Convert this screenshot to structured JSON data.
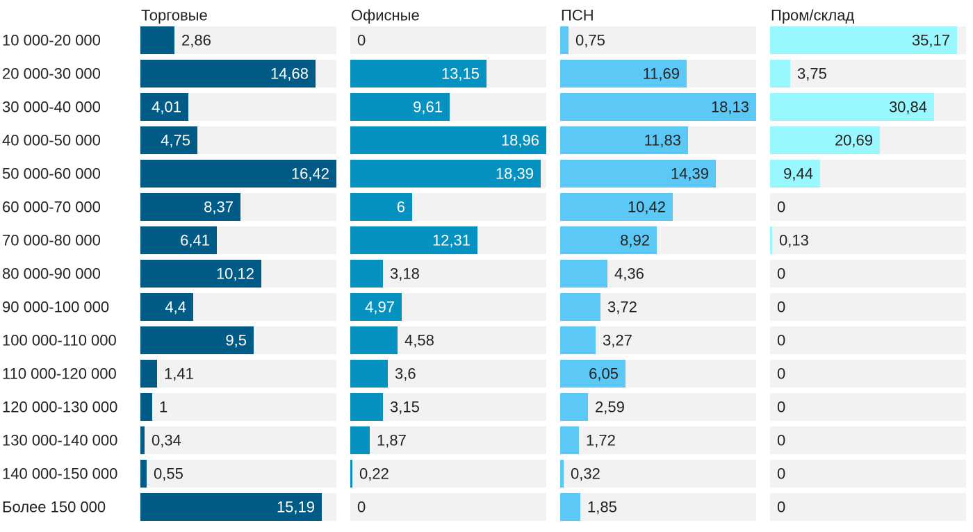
{
  "chart_data": {
    "type": "bar",
    "orientation": "horizontal",
    "layout": "small-multiples",
    "grid": false,
    "legend": "none",
    "categories": [
      "10 000-20 000",
      "20 000-30 000",
      "30 000-40 000",
      "40 000-50 000",
      "50 000-60 000",
      "60 000-70 000",
      "70 000-80 000",
      "80 000-90 000",
      "90 000-100 000",
      "100 000-110 000",
      "110 000-120 000",
      "120 000-130 000",
      "130 000-140 000",
      "140 000-150 000",
      "Более 150 000"
    ],
    "track_color": "#f2f2f2",
    "series": [
      {
        "name": "Торговые",
        "color": "#005b86",
        "xlim": [
          0,
          16.42
        ],
        "values": [
          2.86,
          14.68,
          4.01,
          4.75,
          16.42,
          8.37,
          6.41,
          10.12,
          4.4,
          9.5,
          1.41,
          1,
          0.34,
          0.55,
          15.19
        ],
        "labels": [
          "2,86",
          "14,68",
          "4,01",
          "4,75",
          "16,42",
          "8,37",
          "6,41",
          "10,12",
          "4,4",
          "9,5",
          "1,41",
          "1",
          "0,34",
          "0,55",
          "15,19"
        ]
      },
      {
        "name": "Офисные",
        "color": "#0592c1",
        "xlim": [
          0,
          18.96
        ],
        "values": [
          0,
          13.15,
          9.61,
          18.96,
          18.39,
          6,
          12.31,
          3.18,
          4.97,
          4.58,
          3.6,
          3.15,
          1.87,
          0.22,
          0
        ],
        "labels": [
          "0",
          "13,15",
          "9,61",
          "18,96",
          "18,39",
          "6",
          "12,31",
          "3,18",
          "4,97",
          "4,58",
          "3,6",
          "3,15",
          "1,87",
          "0,22",
          "0"
        ]
      },
      {
        "name": "ПСН",
        "color": "#5cc8f5",
        "xlim": [
          0,
          18.13
        ],
        "values": [
          0.75,
          11.69,
          18.13,
          11.83,
          14.39,
          10.42,
          8.92,
          4.36,
          3.72,
          3.27,
          6.05,
          2.59,
          1.72,
          0.32,
          1.85
        ],
        "labels": [
          "0,75",
          "11,69",
          "18,13",
          "11,83",
          "14,39",
          "10,42",
          "8,92",
          "4,36",
          "3,72",
          "3,27",
          "6,05",
          "2,59",
          "1,72",
          "0,32",
          "1,85"
        ]
      },
      {
        "name": "Пром/склад",
        "color": "#99f8fd",
        "xlim": [
          0,
          36.9
        ],
        "values": [
          35.17,
          3.75,
          30.84,
          20.69,
          9.44,
          0,
          0.13,
          0,
          0,
          0,
          0,
          0,
          0,
          0,
          0
        ],
        "labels": [
          "35,17",
          "3,75",
          "30,84",
          "20,69",
          "9,44",
          "0",
          "0,13",
          "0",
          "0",
          "0",
          "0",
          "0",
          "0",
          "0",
          "0"
        ]
      }
    ]
  }
}
